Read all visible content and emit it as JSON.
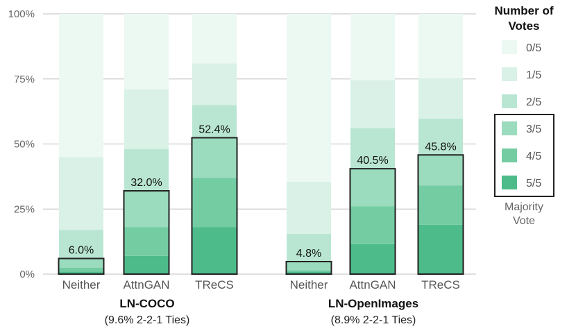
{
  "chart_data": {
    "type": "bar",
    "stacked": true,
    "categories": [
      "Neither",
      "AttnGAN",
      "TReCS",
      "Neither",
      "AttnGAN",
      "TReCS"
    ],
    "groups": [
      {
        "title": "LN-COCO",
        "subtitle": "(9.6% 2-2-1 Ties)",
        "categories": [
          "Neither",
          "AttnGAN",
          "TReCS"
        ]
      },
      {
        "title": "LN-OpenImages",
        "subtitle": "(8.9% 2-2-1 Ties)",
        "categories": [
          "Neither",
          "AttnGAN",
          "TReCS"
        ]
      }
    ],
    "series": [
      {
        "name": "5/5",
        "color": "#4dbb8a",
        "values": [
          1.0,
          7.0,
          18.0,
          1.0,
          11.5,
          19.0
        ]
      },
      {
        "name": "4/5",
        "color": "#74cca3",
        "values": [
          1.5,
          11.0,
          19.0,
          0.5,
          14.5,
          15.0
        ]
      },
      {
        "name": "3/5",
        "color": "#9adcbd",
        "values": [
          3.5,
          14.0,
          15.4,
          3.3,
          14.5,
          11.8
        ]
      },
      {
        "name": "2/5",
        "color": "#b9e6d3",
        "values": [
          11.0,
          16.0,
          12.6,
          10.7,
          15.5,
          14.0
        ]
      },
      {
        "name": "1/5",
        "color": "#d9f1e6",
        "values": [
          28.0,
          23.0,
          16.0,
          20.0,
          18.5,
          15.5
        ]
      },
      {
        "name": "0/5",
        "color": "#ecf8f2",
        "values": [
          55.0,
          29.0,
          19.0,
          64.5,
          25.5,
          24.7
        ]
      }
    ],
    "majority_values": [
      6.0,
      32.0,
      52.4,
      4.8,
      40.5,
      45.8
    ],
    "majority_labels": [
      "6.0%",
      "32.0%",
      "52.4%",
      "4.8%",
      "40.5%",
      "45.8%"
    ],
    "ylim": [
      0,
      100
    ],
    "yticks": [
      0,
      25,
      50,
      75,
      100
    ],
    "ytick_labels": [
      "0%",
      "25%",
      "50%",
      "75%",
      "100%"
    ],
    "grid": true,
    "legend": {
      "title_lines": [
        "Number of",
        "Votes"
      ],
      "items": [
        "0/5",
        "1/5",
        "2/5",
        "3/5",
        "4/5",
        "5/5"
      ],
      "footer_lines": [
        "Majority",
        "Vote"
      ],
      "placement": "right"
    }
  }
}
